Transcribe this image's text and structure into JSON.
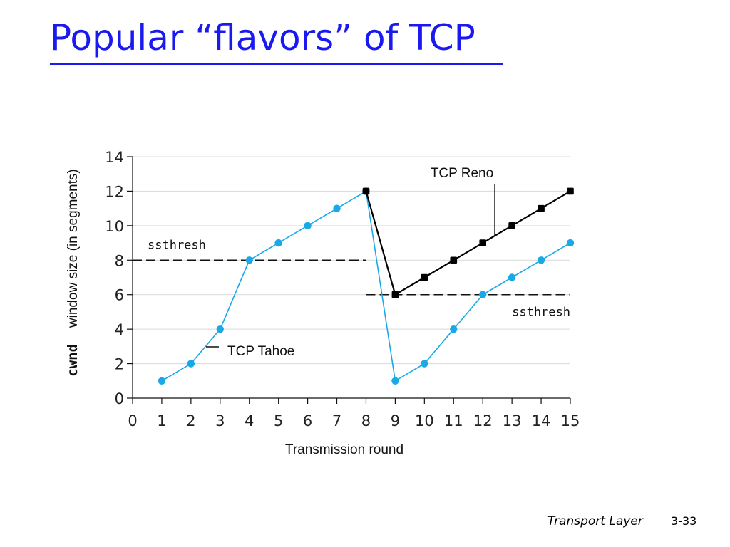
{
  "slide": {
    "title": "Popular “flavors” of TCP",
    "footer_label": "Transport Layer",
    "page_number": "3-33"
  },
  "colors": {
    "title": "#1a1af0",
    "tahoe": "#19a9e6",
    "reno": "#000000"
  },
  "chart_data": {
    "type": "line",
    "xlabel": "Transmission round",
    "ylabel_prefix": "cwnd",
    "ylabel": "window size (in segments)",
    "xlim": [
      0,
      15
    ],
    "ylim": [
      0,
      14
    ],
    "x_ticks": [
      "0",
      "1",
      "2",
      "3",
      "4",
      "5",
      "6",
      "7",
      "8",
      "9",
      "10",
      "11",
      "12",
      "13",
      "14",
      "15"
    ],
    "y_ticks": [
      "0",
      "2",
      "4",
      "6",
      "8",
      "10",
      "12",
      "14"
    ],
    "grid": "horizontal",
    "series": [
      {
        "name": "TCP Tahoe",
        "color": "#19a9e6",
        "x": [
          1,
          2,
          3,
          4,
          5,
          6,
          7,
          8,
          9,
          10,
          11,
          12,
          13,
          14,
          15
        ],
        "y": [
          1,
          2,
          4,
          8,
          9,
          10,
          11,
          12,
          1,
          2,
          4,
          6,
          7,
          8,
          9
        ]
      },
      {
        "name": "TCP Reno",
        "color": "#000000",
        "x": [
          8,
          9,
          10,
          11,
          12,
          13,
          14,
          15
        ],
        "y": [
          12,
          6,
          7,
          8,
          9,
          10,
          11,
          12
        ]
      }
    ],
    "thresholds": [
      {
        "label": "ssthresh",
        "value": 8,
        "x_from": 0,
        "x_to": 8
      },
      {
        "label": "ssthresh",
        "value": 6,
        "x_from": 8,
        "x_to": 15
      }
    ],
    "annotations": [
      {
        "text": "TCP Reno",
        "points_to_series": "TCP Reno"
      },
      {
        "text": "TCP Tahoe",
        "points_to_series": "TCP Tahoe"
      }
    ]
  }
}
